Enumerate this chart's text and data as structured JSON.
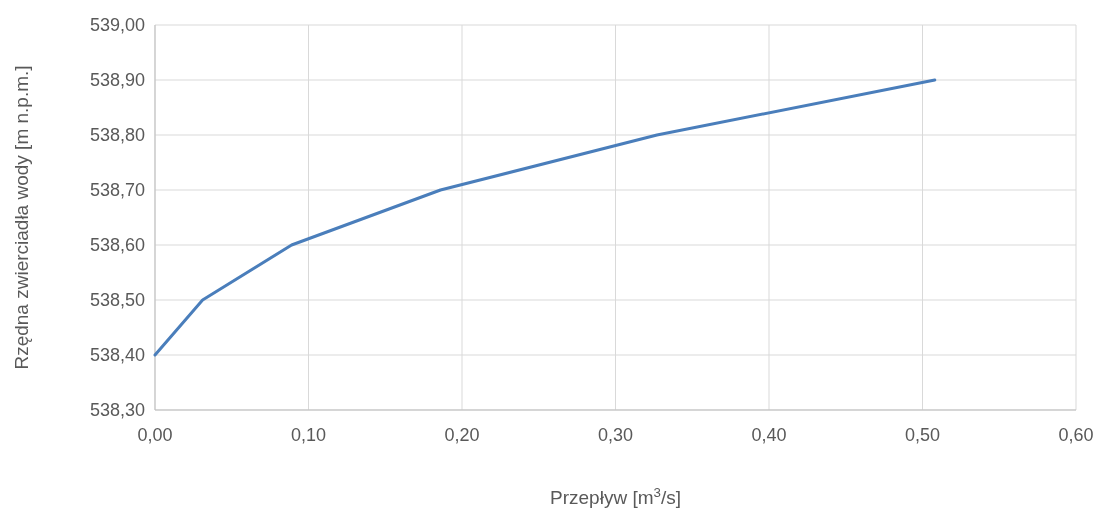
{
  "chart_data": {
    "type": "line",
    "xlabel": "Przepływ [m$^{3}$/s]",
    "ylabel": "Rzędna zwierciadła wody [m n.p.m.]",
    "x": [
      0,
      0.031,
      0.089,
      0.186,
      0.327,
      0.508
    ],
    "series": [
      {
        "color": "#4a7ebb",
        "values": [
          538.4,
          538.5,
          538.6,
          538.7,
          538.8,
          538.9
        ]
      }
    ],
    "xlim": [
      0,
      0.6
    ],
    "xticks": [
      {
        "value": 0,
        "label": "0,00"
      },
      {
        "value": 0.1,
        "label": "0,10"
      },
      {
        "value": 0.2,
        "label": "0,20"
      },
      {
        "value": 0.3,
        "label": "0,30"
      },
      {
        "value": 0.4,
        "label": "0,40"
      },
      {
        "value": 0.5,
        "label": "0,50"
      },
      {
        "value": 0.6,
        "label": "0,60"
      }
    ],
    "ylim": [
      538.3,
      539
    ],
    "yticks": [
      {
        "value": 538.3,
        "label": "538,30"
      },
      {
        "value": 538.4,
        "label": "538,40"
      },
      {
        "value": 538.5,
        "label": "538,50"
      },
      {
        "value": 538.6,
        "label": "538,60"
      },
      {
        "value": 538.7,
        "label": "538,70"
      },
      {
        "value": 538.8,
        "label": "538,80"
      },
      {
        "value": 538.9,
        "label": "538,90"
      },
      {
        "value": 539,
        "label": "539,00"
      }
    ],
    "grid": true,
    "marker": "none",
    "line_style": "solid"
  }
}
